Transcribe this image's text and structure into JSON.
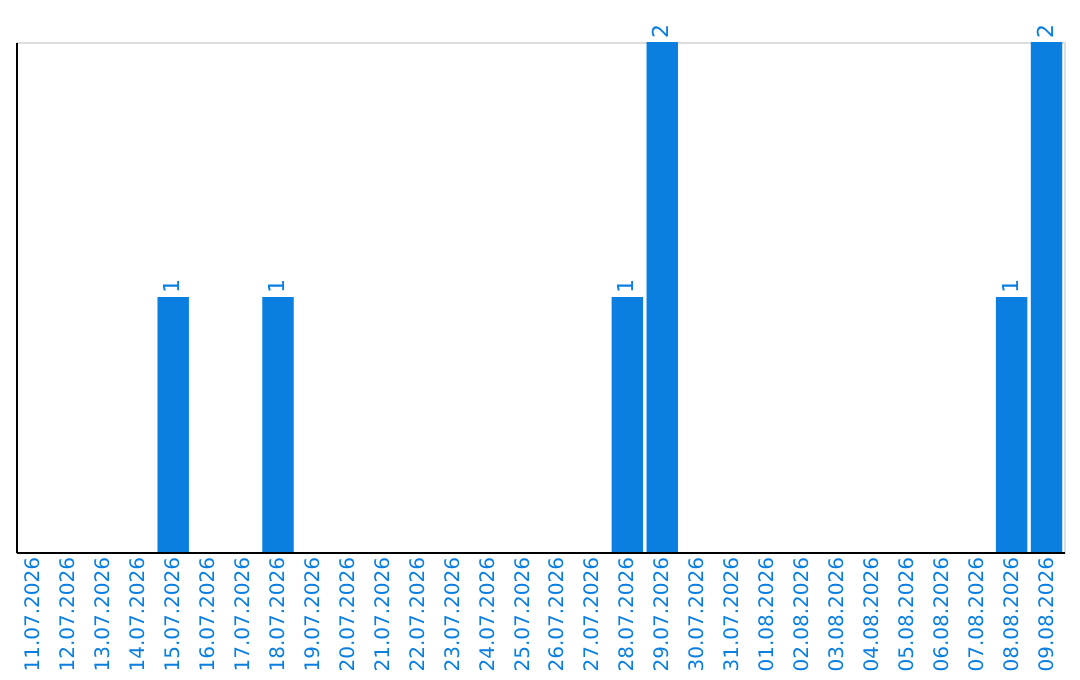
{
  "chart_data": {
    "type": "bar",
    "categories": [
      "11.07.2026",
      "12.07.2026",
      "13.07.2026",
      "14.07.2026",
      "15.07.2026",
      "16.07.2026",
      "17.07.2026",
      "18.07.2026",
      "19.07.2026",
      "20.07.2026",
      "21.07.2026",
      "22.07.2026",
      "23.07.2026",
      "24.07.2026",
      "25.07.2026",
      "26.07.2026",
      "27.07.2026",
      "28.07.2026",
      "29.07.2026",
      "30.07.2026",
      "31.07.2026",
      "01.08.2026",
      "02.08.2026",
      "03.08.2026",
      "04.08.2026",
      "05.08.2026",
      "06.08.2026",
      "07.08.2026",
      "08.08.2026",
      "09.08.2026"
    ],
    "values": [
      0,
      0,
      0,
      0,
      1,
      0,
      0,
      1,
      0,
      0,
      0,
      0,
      0,
      0,
      0,
      0,
      0,
      1,
      2,
      0,
      0,
      0,
      0,
      0,
      0,
      0,
      0,
      0,
      1,
      2
    ],
    "value_labels": [
      null,
      null,
      null,
      null,
      "1",
      null,
      null,
      "1",
      null,
      null,
      null,
      null,
      null,
      null,
      null,
      null,
      null,
      "1",
      "2",
      null,
      null,
      null,
      null,
      null,
      null,
      null,
      null,
      null,
      "1",
      "2"
    ],
    "color": "#0a7fe0",
    "ylim": [
      0,
      2
    ],
    "tick_labels": "x",
    "grid": false
  }
}
